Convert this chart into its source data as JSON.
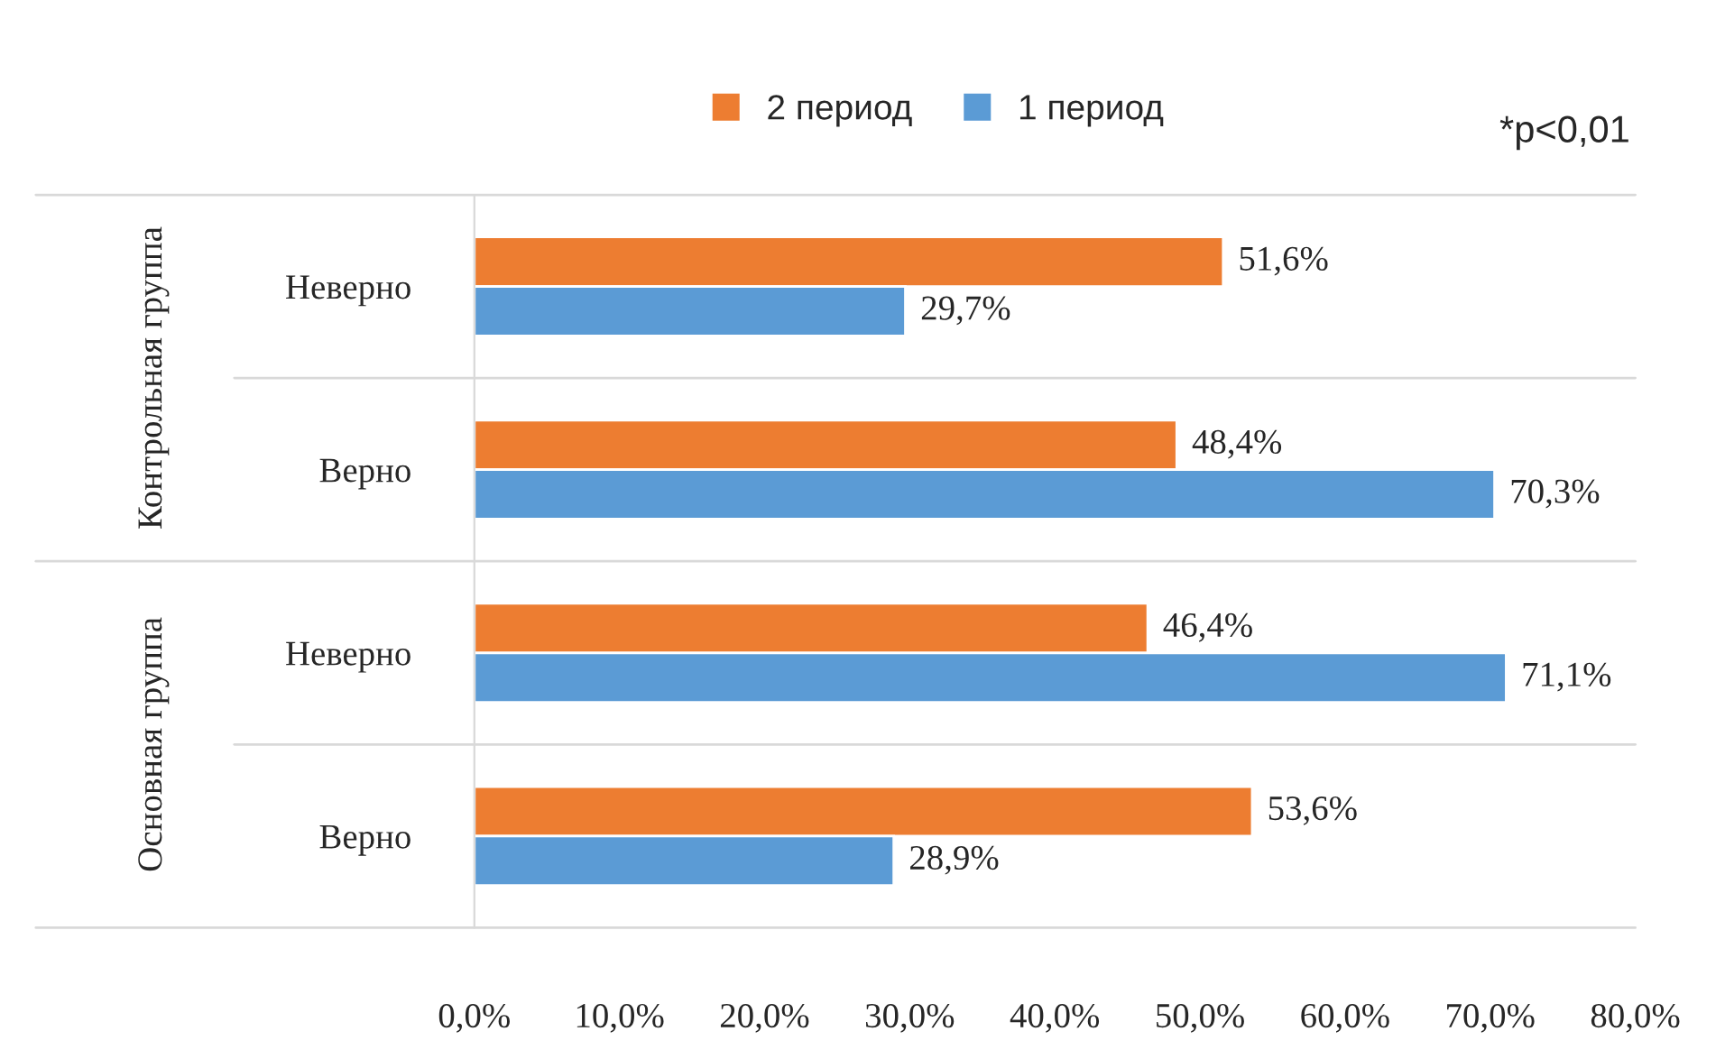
{
  "chart_data": {
    "type": "bar",
    "orientation": "horizontal",
    "categories": [
      "Неверно",
      "Верно",
      "Неверно",
      "Верно"
    ],
    "series": [
      {
        "name": "2 период",
        "color": "#ed7d31",
        "values": [
          51.6,
          48.4,
          46.4,
          53.6
        ],
        "value_labels": [
          "51,6%",
          "48,4%",
          "46,4%",
          "53,6%"
        ]
      },
      {
        "name": "1 период",
        "color": "#5b9bd5",
        "values": [
          29.7,
          70.3,
          71.1,
          28.9
        ],
        "value_labels": [
          "29,7%",
          "70,3%",
          "71,1%",
          "28,9%"
        ]
      }
    ],
    "xlim": [
      0,
      80
    ],
    "xticks": [
      {
        "value": 0,
        "label": "0,0%"
      },
      {
        "value": 10,
        "label": "10,0%"
      },
      {
        "value": 20,
        "label": "20,0%"
      },
      {
        "value": 30,
        "label": "30,0%"
      },
      {
        "value": 40,
        "label": "40,0%"
      },
      {
        "value": 50,
        "label": "50,0%"
      },
      {
        "value": 60,
        "label": "60,0%"
      },
      {
        "value": 70,
        "label": "70,0%"
      },
      {
        "value": 80,
        "label": "80,0%"
      }
    ],
    "legend": "top",
    "grid": false,
    "annotations": [
      "Контрольная группа",
      "Основная группа",
      "*p<0,01"
    ]
  }
}
